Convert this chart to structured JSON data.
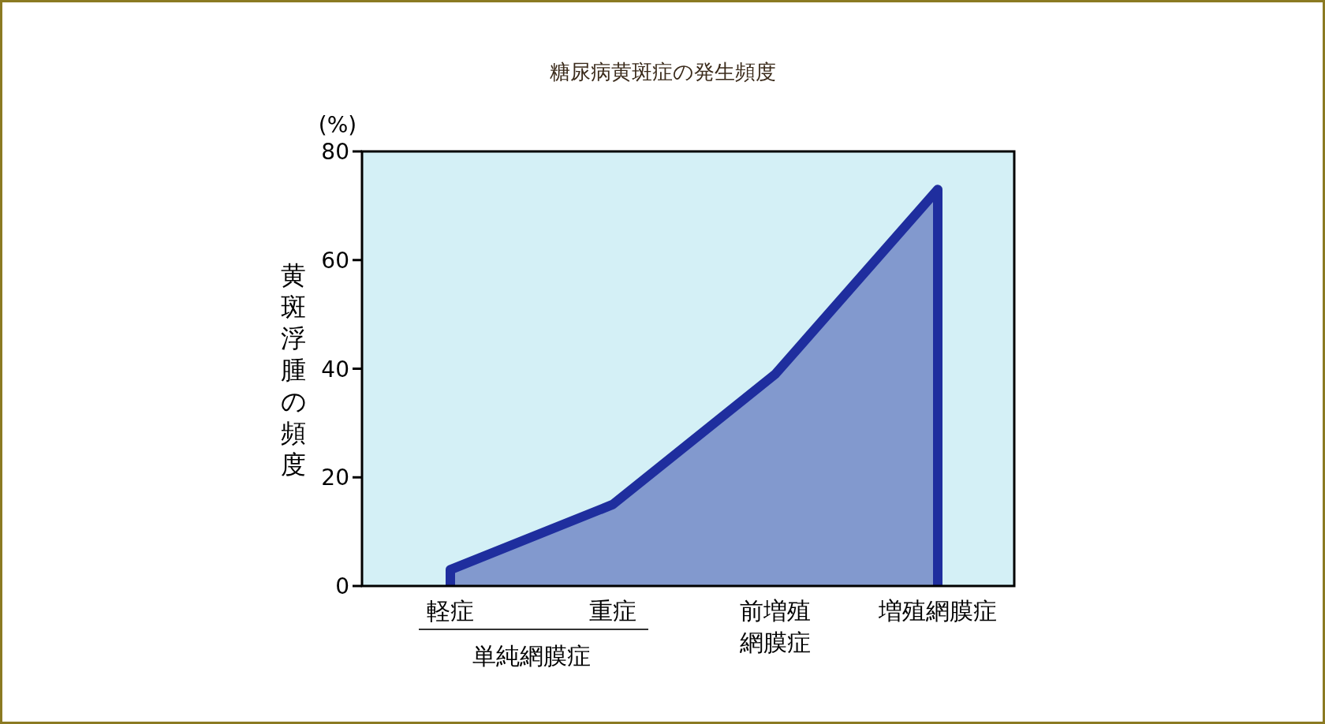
{
  "chart_data": {
    "type": "area",
    "title": "糖尿病黄斑症の発生頻度",
    "ylabel": "黄斑浮腫の頻度",
    "categories": [
      "軽症",
      "重症",
      "前増殖網膜症",
      "増殖網膜症"
    ],
    "series": [
      {
        "color": "#1f2e9e",
        "values": [
          3,
          15,
          39,
          73
        ]
      }
    ],
    "ylim": [
      0,
      80
    ],
    "yticks": [
      0,
      20,
      40,
      60,
      80
    ],
    "grid": false,
    "annotations": [
      "(%)",
      "単純網膜症"
    ]
  }
}
